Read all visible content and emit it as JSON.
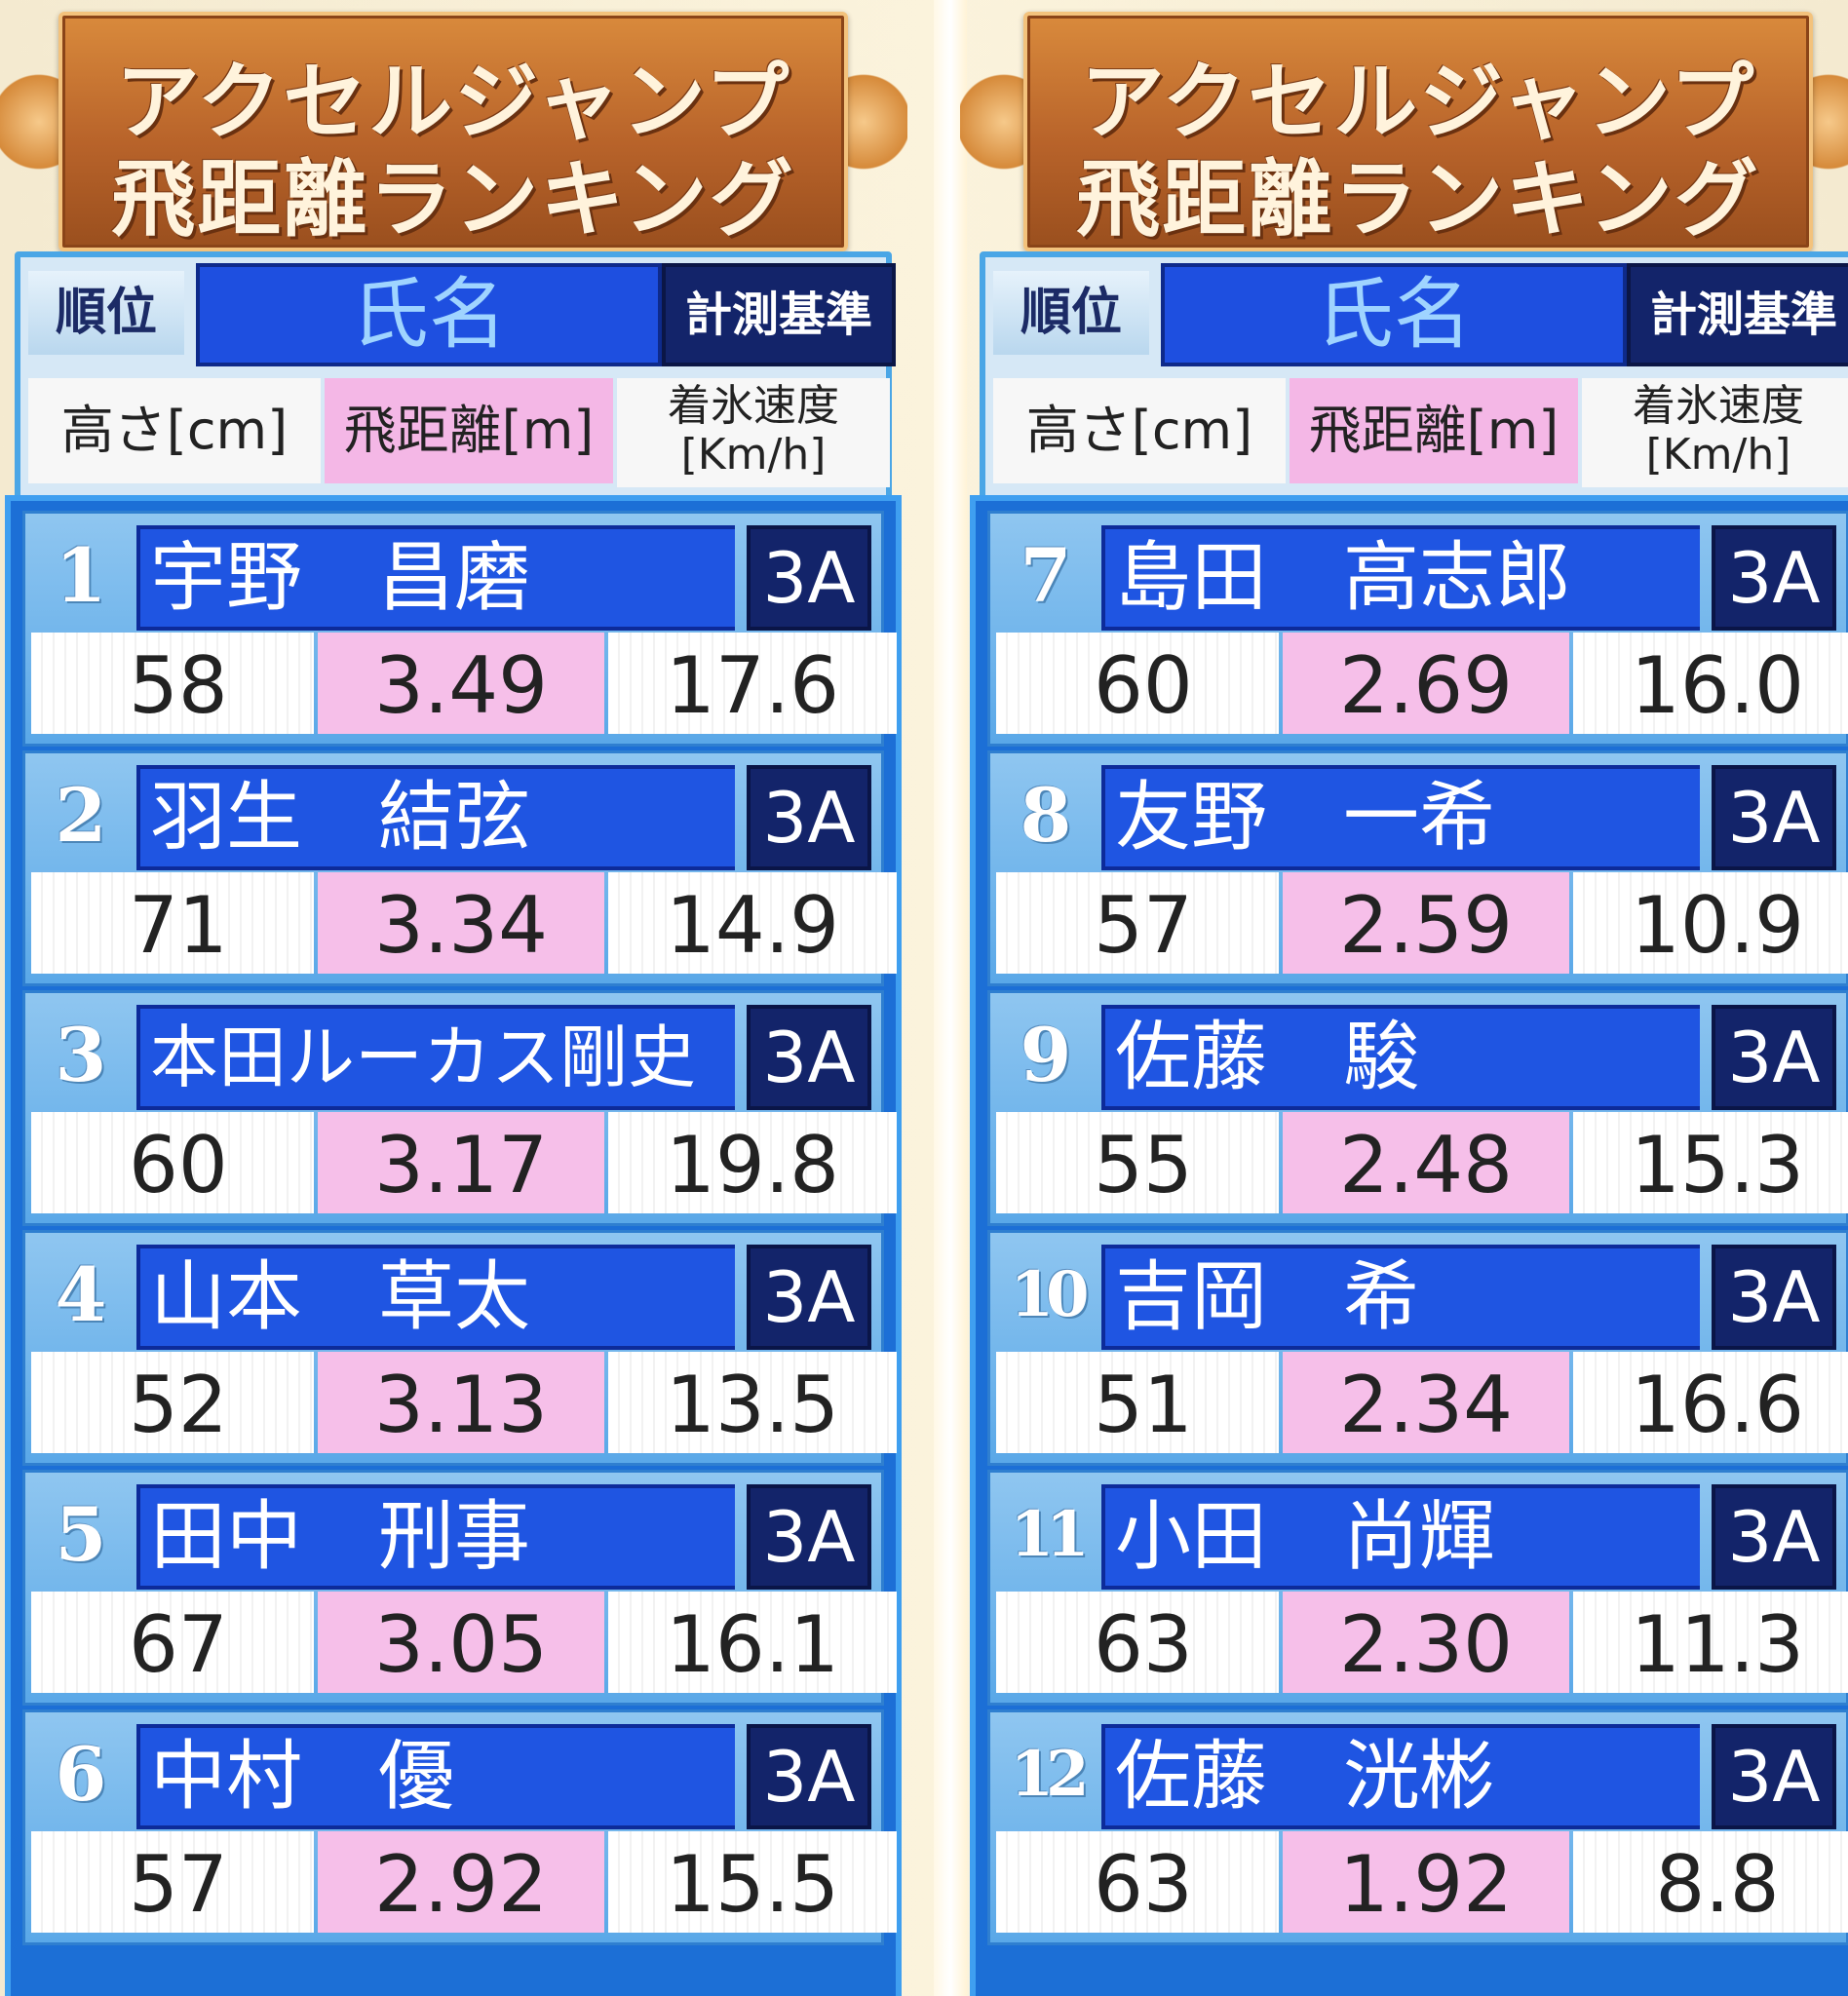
{
  "title": {
    "line1": "アクセルジャンプ",
    "line2": "飛距離ランキング"
  },
  "headers": {
    "rank": "順位",
    "name": "氏名",
    "criterion": "計測基準",
    "height": "高さ[cm]",
    "distance": "飛距離[m]",
    "speed_line1": "着氷速度",
    "speed_line2": "[Km/h]"
  },
  "left": {
    "rows": [
      {
        "rank": "1",
        "name": "宇野　昌磨",
        "jump": "3A",
        "height": "58",
        "distance": "3.49",
        "speed": "17.6"
      },
      {
        "rank": "2",
        "name": "羽生　結弦",
        "jump": "3A",
        "height": "71",
        "distance": "3.34",
        "speed": "14.9"
      },
      {
        "rank": "3",
        "name": "本田ルーカス剛史",
        "jump": "3A",
        "height": "60",
        "distance": "3.17",
        "speed": "19.8"
      },
      {
        "rank": "4",
        "name": "山本　草太",
        "jump": "3A",
        "height": "52",
        "distance": "3.13",
        "speed": "13.5"
      },
      {
        "rank": "5",
        "name": "田中　刑事",
        "jump": "3A",
        "height": "67",
        "distance": "3.05",
        "speed": "16.1"
      },
      {
        "rank": "6",
        "name": "中村　優",
        "jump": "3A",
        "height": "57",
        "distance": "2.92",
        "speed": "15.5"
      }
    ]
  },
  "right": {
    "rows": [
      {
        "rank": "7",
        "name": "島田　高志郎",
        "jump": "3A",
        "height": "60",
        "distance": "2.69",
        "speed": "16.0"
      },
      {
        "rank": "8",
        "name": "友野　一希",
        "jump": "3A",
        "height": "57",
        "distance": "2.59",
        "speed": "10.9"
      },
      {
        "rank": "9",
        "name": "佐藤　駿",
        "jump": "3A",
        "height": "55",
        "distance": "2.48",
        "speed": "15.3"
      },
      {
        "rank": "10",
        "name": "吉岡　希",
        "jump": "3A",
        "height": "51",
        "distance": "2.34",
        "speed": "16.6"
      },
      {
        "rank": "11",
        "name": "小田　尚輝",
        "jump": "3A",
        "height": "63",
        "distance": "2.30",
        "speed": "11.3"
      },
      {
        "rank": "12",
        "name": "佐藤　洸彬",
        "jump": "3A",
        "height": "63",
        "distance": "1.92",
        "speed": "8.8"
      }
    ]
  },
  "colors": {
    "title_brown": "#b8632a",
    "name_blue": "#1f55e2",
    "criterion_navy": "#13246a",
    "distance_pink": "#f6bfe9",
    "list_blue": "#1c6fd6"
  }
}
